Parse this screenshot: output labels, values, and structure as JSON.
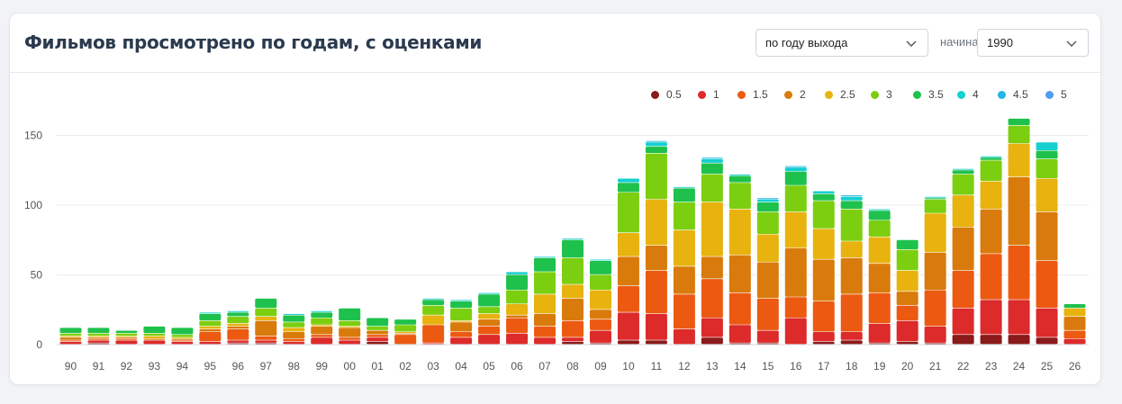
{
  "header": {
    "title": "Фильмов просмотрено по годам, с оценками",
    "mode_select": {
      "value": "по году выхода"
    },
    "start_label": "начиная с",
    "year_select": {
      "value": "1990"
    }
  },
  "chart_data": {
    "type": "bar",
    "stacked": true,
    "title": "",
    "xlabel": "",
    "ylabel": "",
    "ylim": [
      0,
      160
    ],
    "yticks": [
      0,
      50,
      100,
      150
    ],
    "grid": true,
    "legend_position": "top-right",
    "categories": [
      "90",
      "91",
      "92",
      "93",
      "94",
      "95",
      "96",
      "97",
      "98",
      "99",
      "00",
      "01",
      "02",
      "03",
      "04",
      "05",
      "06",
      "07",
      "08",
      "09",
      "10",
      "11",
      "12",
      "13",
      "14",
      "15",
      "16",
      "17",
      "18",
      "19",
      "20",
      "21",
      "22",
      "23",
      "24",
      "25",
      "26"
    ],
    "series": [
      {
        "name": "0.5",
        "color": "#8b1a1a",
        "values": [
          0,
          1,
          0,
          0,
          0,
          0,
          1,
          1,
          0,
          0,
          0,
          2,
          0,
          0,
          0,
          0,
          0,
          0,
          2,
          1,
          3,
          3,
          0,
          5,
          1,
          1,
          0,
          2,
          3,
          1,
          2,
          1,
          7,
          7,
          7,
          5,
          0
        ]
      },
      {
        "name": "1",
        "color": "#dd2a2a",
        "values": [
          2,
          2,
          3,
          3,
          2,
          2,
          2,
          2,
          2,
          5,
          3,
          3,
          0,
          1,
          5,
          7,
          8,
          5,
          3,
          9,
          20,
          19,
          11,
          14,
          13,
          9,
          19,
          7,
          6,
          14,
          15,
          12,
          19,
          25,
          25,
          21,
          4
        ]
      },
      {
        "name": "1.5",
        "color": "#ec5a12",
        "values": [
          1,
          1,
          1,
          0,
          1,
          7,
          8,
          3,
          2,
          2,
          2,
          2,
          7,
          13,
          4,
          6,
          11,
          8,
          12,
          8,
          19,
          31,
          25,
          28,
          23,
          23,
          15,
          22,
          27,
          22,
          11,
          26,
          27,
          33,
          39,
          34,
          6
        ]
      },
      {
        "name": "2",
        "color": "#d97b0c",
        "values": [
          2,
          1,
          1,
          1,
          1,
          2,
          2,
          11,
          5,
          6,
          7,
          3,
          1,
          0,
          7,
          5,
          2,
          9,
          16,
          7,
          21,
          18,
          20,
          16,
          27,
          26,
          35,
          30,
          26,
          21,
          10,
          27,
          31,
          32,
          49,
          35,
          10
        ]
      },
      {
        "name": "2.5",
        "color": "#e8b30f",
        "values": [
          1,
          1,
          1,
          2,
          1,
          2,
          2,
          3,
          3,
          1,
          1,
          0,
          1,
          7,
          1,
          4,
          8,
          14,
          10,
          14,
          17,
          33,
          26,
          39,
          33,
          20,
          26,
          22,
          12,
          19,
          15,
          28,
          23,
          20,
          24,
          24,
          6
        ]
      },
      {
        "name": "3",
        "color": "#7ccf10",
        "values": [
          2,
          2,
          2,
          2,
          2,
          4,
          5,
          6,
          4,
          5,
          4,
          3,
          5,
          7,
          9,
          5,
          10,
          16,
          19,
          11,
          29,
          33,
          20,
          20,
          19,
          16,
          19,
          20,
          23,
          12,
          15,
          10,
          15,
          15,
          13,
          14,
          0
        ]
      },
      {
        "name": "3.5",
        "color": "#1fc14d",
        "values": [
          4,
          4,
          2,
          5,
          5,
          5,
          3,
          7,
          5,
          4,
          9,
          6,
          4,
          4,
          5,
          9,
          11,
          10,
          13,
          10,
          7,
          5,
          10,
          8,
          5,
          7,
          10,
          5,
          6,
          7,
          7,
          1,
          3,
          2,
          5,
          6,
          3
        ]
      },
      {
        "name": "4",
        "color": "#16cfd1",
        "values": [
          0,
          0,
          0,
          0,
          0,
          1,
          1,
          0,
          1,
          1,
          0,
          0,
          0,
          1,
          1,
          1,
          2,
          1,
          1,
          1,
          3,
          3,
          1,
          3,
          1,
          2,
          3,
          2,
          3,
          1,
          0,
          1,
          1,
          1,
          0,
          6,
          0
        ]
      },
      {
        "name": "4.5",
        "color": "#23b6e6",
        "values": [
          0,
          0,
          0,
          0,
          0,
          0,
          0,
          0,
          0,
          0,
          0,
          0,
          0,
          0,
          0,
          0,
          0,
          0,
          0,
          0,
          0,
          1,
          0,
          1,
          0,
          1,
          1,
          0,
          1,
          0,
          0,
          0,
          0,
          0,
          0,
          0,
          0
        ]
      },
      {
        "name": "5",
        "color": "#4f9ef0",
        "values": [
          0,
          0,
          0,
          0,
          0,
          0,
          0,
          0,
          0,
          0,
          0,
          0,
          0,
          0,
          0,
          0,
          0,
          0,
          0,
          0,
          0,
          0,
          0,
          0,
          0,
          0,
          0,
          0,
          0,
          0,
          0,
          0,
          0,
          0,
          0,
          0,
          0
        ]
      }
    ]
  }
}
